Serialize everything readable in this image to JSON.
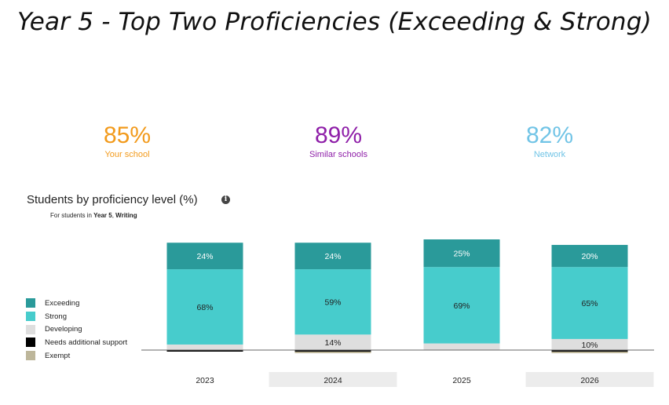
{
  "page": {
    "title": "Year 5 - Top Two Proficiencies (Exceeding & Strong)"
  },
  "stats": [
    {
      "value": "85%",
      "label": "Your school",
      "color": "#f29a1b"
    },
    {
      "value": "89%",
      "label": "Similar schools",
      "color": "#8e1ea8"
    },
    {
      "value": "82%",
      "label": "Network",
      "color": "#71c4e6"
    }
  ],
  "section": {
    "title": "Students by proficiency level (%)",
    "info_icon": "info-icon",
    "subtitle_prefix": "For students in ",
    "subtitle_year": "Year 5",
    "subtitle_sep": ", ",
    "subtitle_subject": "Writing"
  },
  "chart_data": {
    "type": "bar",
    "stacked": true,
    "categories": [
      "2023",
      "2024",
      "2025",
      "2026"
    ],
    "series": [
      {
        "name": "Exceeding",
        "color": "#2a9a9a",
        "values": [
          24,
          24,
          25,
          20
        ],
        "labels": [
          "24%",
          "24%",
          "25%",
          "20%"
        ]
      },
      {
        "name": "Strong",
        "color": "#47cccc",
        "values": [
          68,
          59,
          69,
          65
        ],
        "labels": [
          "68%",
          "59%",
          "69%",
          "65%"
        ]
      },
      {
        "name": "Developing",
        "color": "#dedede",
        "values": [
          5,
          14,
          6,
          10
        ],
        "labels": [
          "",
          "14%",
          "",
          "10%"
        ]
      },
      {
        "name": "Needs additional support",
        "color": "#000000",
        "values": [
          1,
          0.5,
          0,
          1
        ],
        "labels": [
          "",
          "",
          "",
          ""
        ]
      },
      {
        "name": "Exempt",
        "color": "#bdb69a",
        "values": [
          0,
          1,
          0,
          1
        ],
        "labels": [
          "",
          "",
          "",
          ""
        ]
      }
    ],
    "ylim": [
      0,
      100
    ],
    "legend_position": "left"
  }
}
